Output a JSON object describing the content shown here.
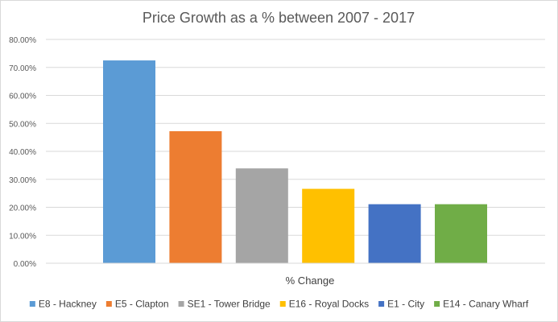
{
  "chart_data": {
    "type": "bar",
    "title": "Price Growth as a % between 2007 - 2017",
    "categories": [
      "% Change"
    ],
    "series": [
      {
        "name": "E8 - Hackney",
        "values": [
          72.5
        ],
        "color": "#5b9bd5"
      },
      {
        "name": "E5 - Clapton",
        "values": [
          47.2
        ],
        "color": "#ed7d31"
      },
      {
        "name": "SE1 - Tower Bridge",
        "values": [
          33.9
        ],
        "color": "#a5a5a5"
      },
      {
        "name": "E16 - Royal Docks",
        "values": [
          26.6
        ],
        "color": "#ffc000"
      },
      {
        "name": "E1 - City",
        "values": [
          21.1
        ],
        "color": "#4472c4"
      },
      {
        "name": "E14 - Canary Wharf",
        "values": [
          21.1
        ],
        "color": "#70ad47"
      }
    ],
    "ylim": [
      0,
      80
    ],
    "yticks": [
      "0.00%",
      "10.00%",
      "20.00%",
      "30.00%",
      "40.00%",
      "50.00%",
      "60.00%",
      "70.00%",
      "80.00%"
    ],
    "grid": true,
    "legend_position": "bottom"
  }
}
